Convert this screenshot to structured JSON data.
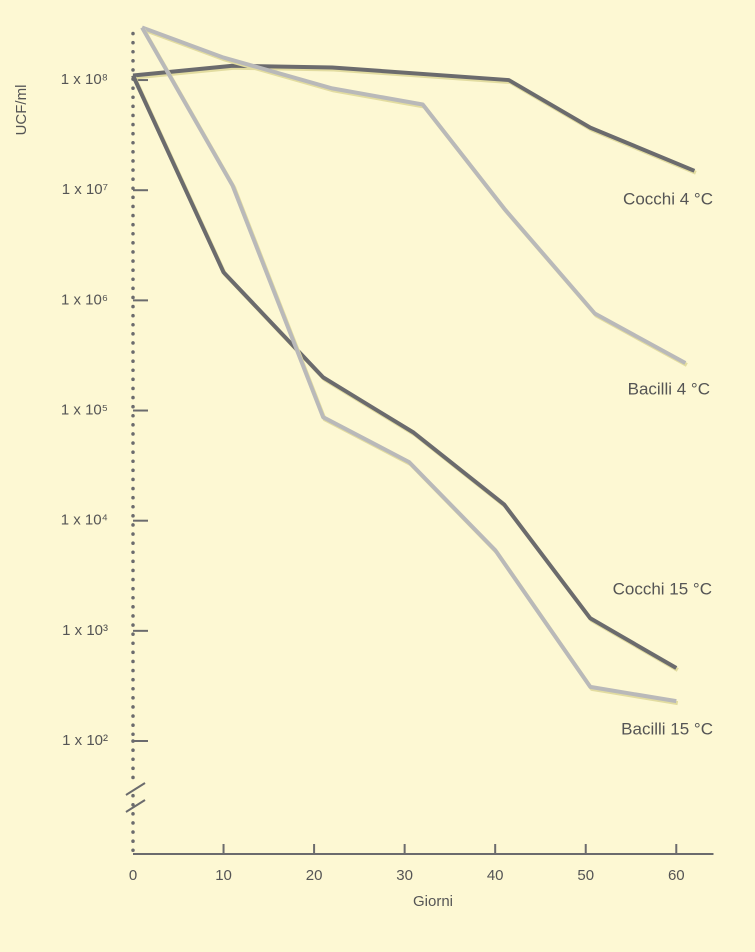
{
  "chart_data": {
    "type": "line",
    "ylabel": "UCF/ml",
    "xlabel": "Giorni",
    "ylog": true,
    "ylim": [
      100,
      300000000
    ],
    "yticks": [
      {
        "value": 100000000,
        "label": "1 x 10⁸"
      },
      {
        "value": 10000000,
        "label": "1 x 10⁷"
      },
      {
        "value": 1000000,
        "label": "1 x 10⁶"
      },
      {
        "value": 100000,
        "label": "1 x 10⁵"
      },
      {
        "value": 10000,
        "label": "1 x 10⁴"
      },
      {
        "value": 1000,
        "label": "1 x 10³"
      },
      {
        "value": 100,
        "label": "1 x 10²"
      }
    ],
    "xlim": [
      0,
      64
    ],
    "xticks": [
      0,
      10,
      20,
      30,
      40,
      50,
      60
    ],
    "series": [
      {
        "name": "Cocchi 4 °C",
        "color": "#6b6b6d",
        "x": [
          0,
          11,
          22,
          41.5,
          50.5,
          62
        ],
        "values": [
          110000000,
          135000000,
          130000000,
          100000000,
          37000000,
          15000000
        ]
      },
      {
        "name": "Bacilli 4 °C",
        "color": "#b9b9b9",
        "x": [
          1,
          10,
          22,
          32,
          41,
          51,
          61
        ],
        "values": [
          300000000,
          160000000,
          84000000,
          60000000,
          6800000,
          760000,
          270000
        ]
      },
      {
        "name": "Cocchi 15 °C",
        "color": "#6b6b6d",
        "x": [
          0,
          10,
          21,
          31,
          41,
          50.5,
          60
        ],
        "values": [
          110000000,
          1800000,
          200000,
          63000,
          14000,
          1300,
          460
        ]
      },
      {
        "name": "Bacilli 15 °C",
        "color": "#b9b9b9",
        "x": [
          1,
          11,
          21,
          30.5,
          40,
          50.5,
          60
        ],
        "values": [
          300000000,
          11000000,
          87000,
          34000,
          5400,
          310,
          230
        ]
      }
    ]
  }
}
